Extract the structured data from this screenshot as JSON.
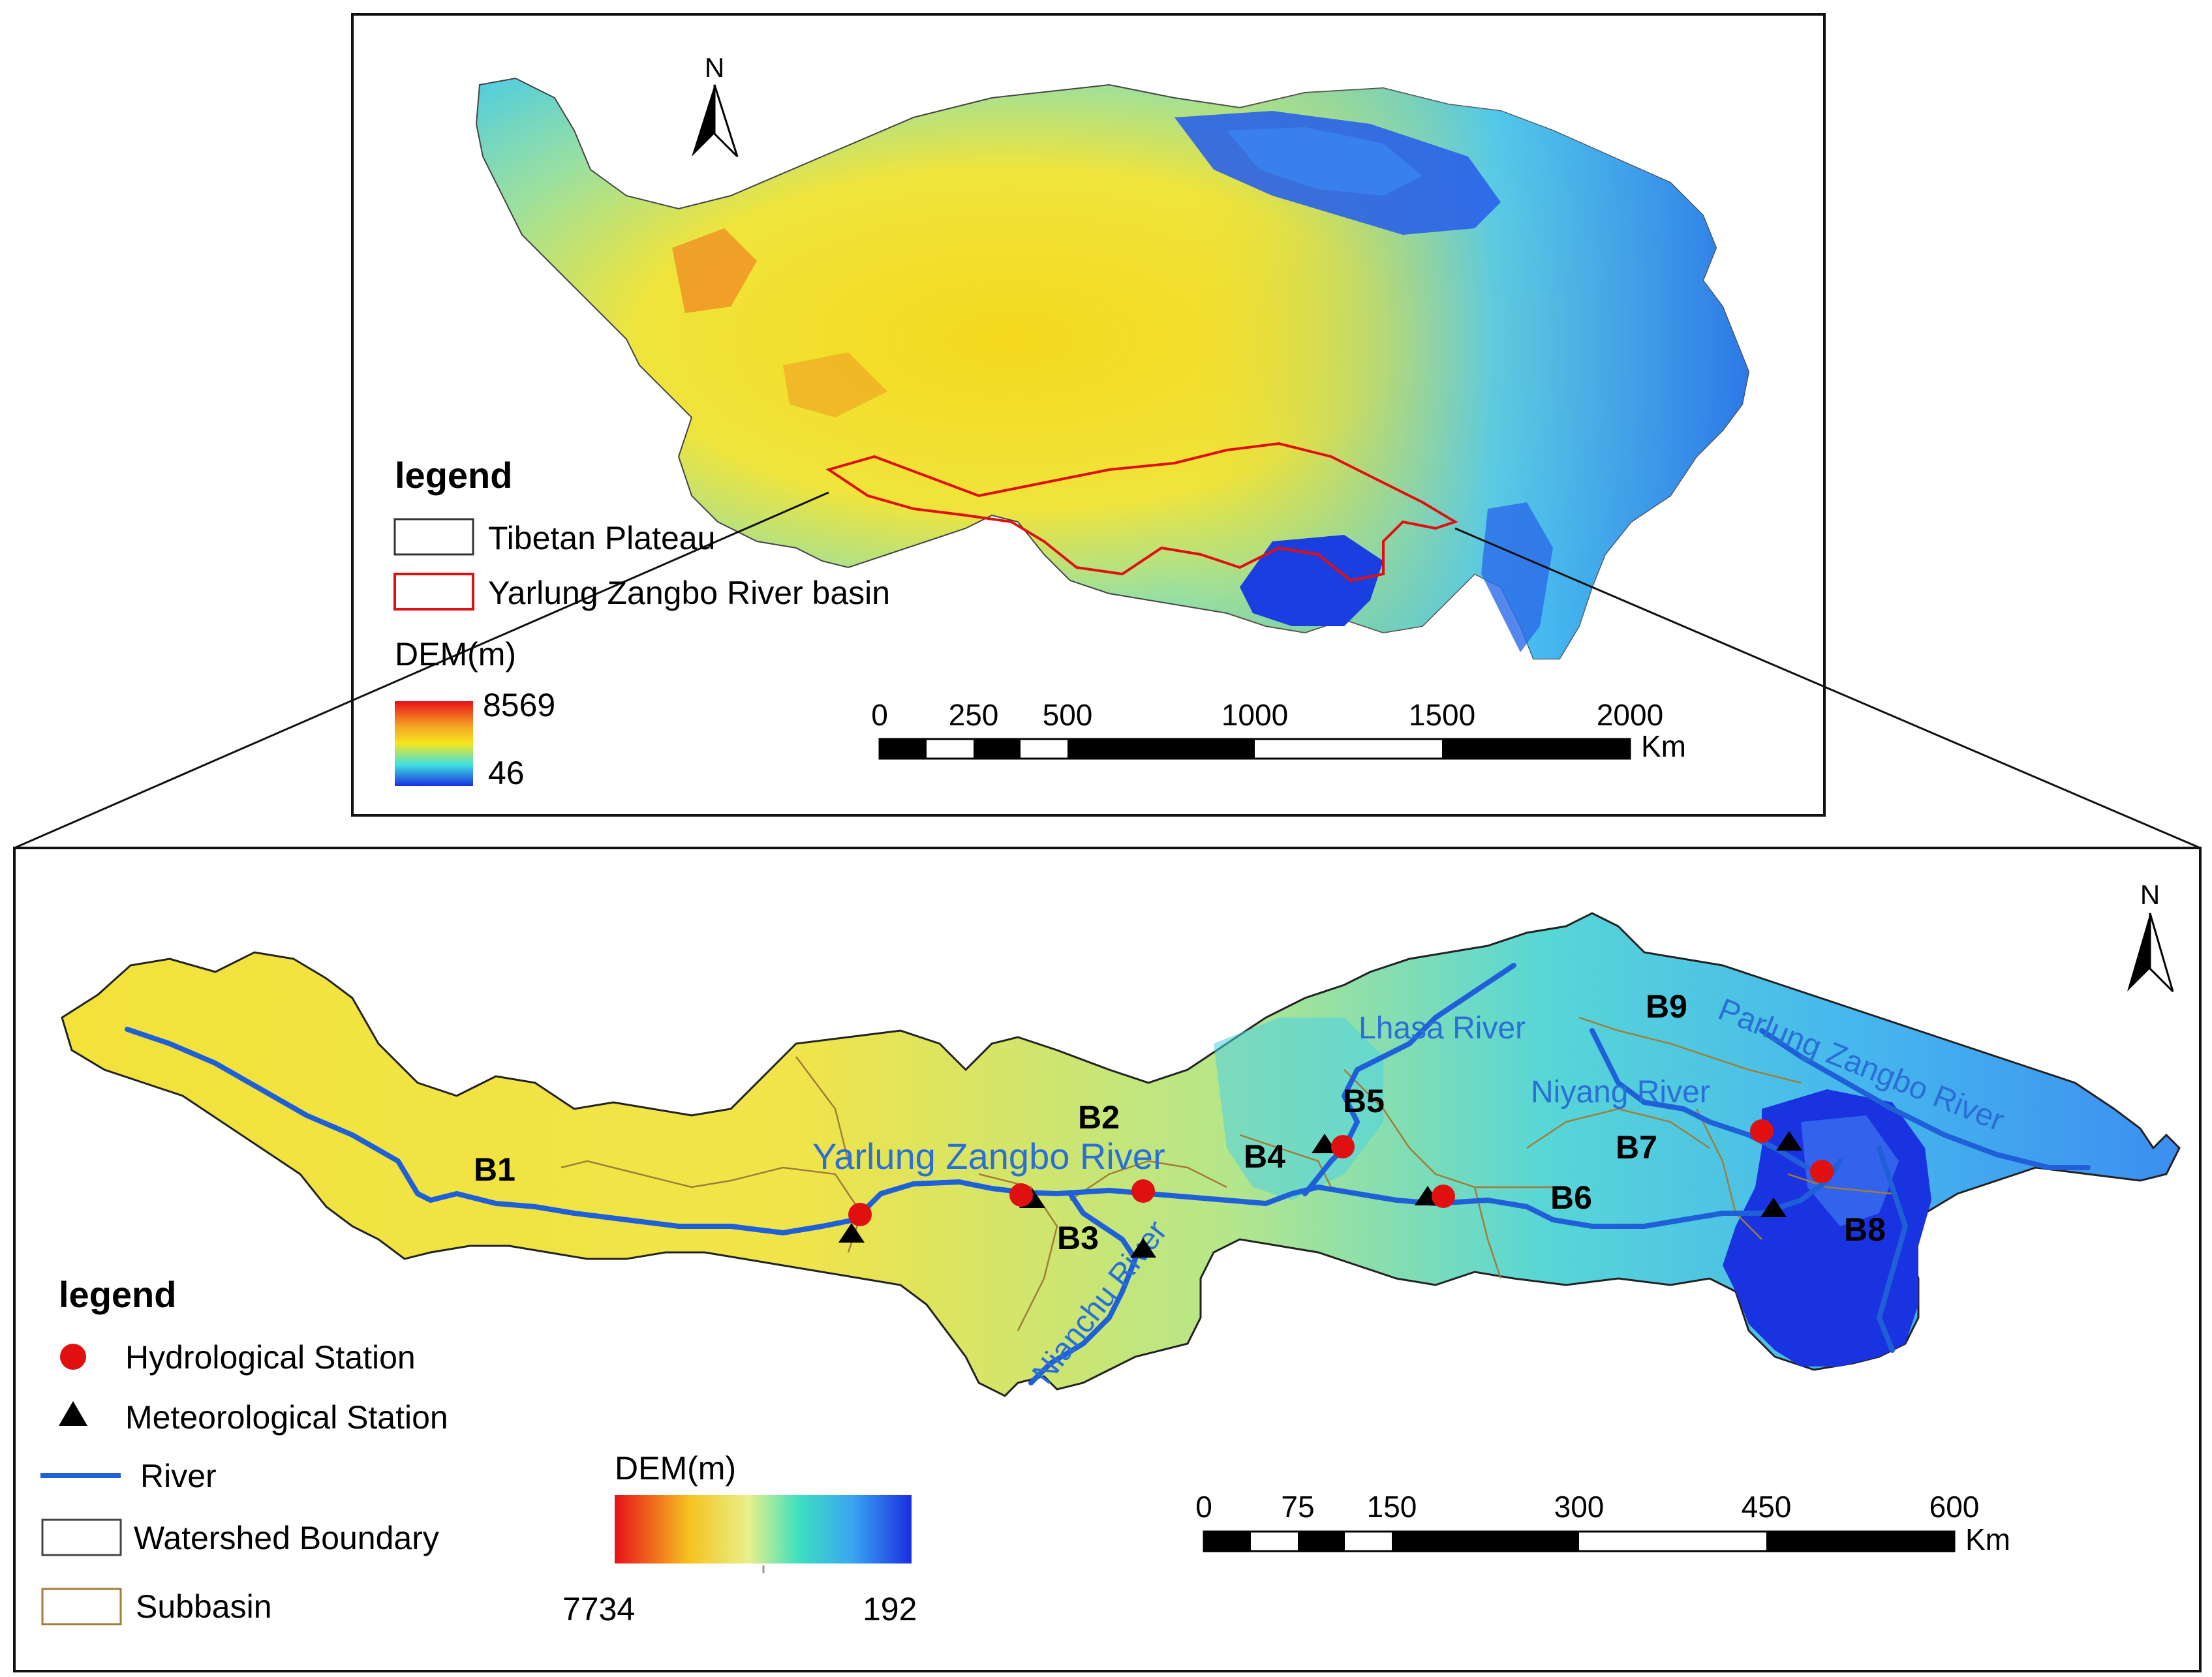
{
  "top_panel": {
    "north_label": "N",
    "legend": {
      "title": "legend",
      "items": [
        {
          "label": "Tibetan Plateau",
          "swatch": "#333333"
        },
        {
          "label": "Yarlung Zangbo River basin",
          "swatch": "#e01010"
        }
      ],
      "dem_title": "DEM(m)",
      "dem_max": "8569",
      "dem_min": "46"
    },
    "scale": {
      "ticks": [
        "0",
        "250",
        "500",
        "1000",
        "1500",
        "2000"
      ],
      "unit": "Km"
    }
  },
  "bottom_panel": {
    "north_label": "N",
    "basins": [
      "B1",
      "B2",
      "B3",
      "B4",
      "B5",
      "B6",
      "B7",
      "B8",
      "B9"
    ],
    "rivers": {
      "main": "Yarlung Zangbo River",
      "lhasa": "Lhasa River",
      "niyang": "Niyang River",
      "parlung": "Parlung Zangbo River",
      "nianchu": "Nianchu River"
    },
    "legend": {
      "title": "legend",
      "items": [
        {
          "label": "Hydrological Station",
          "icon": "red-circle-icon"
        },
        {
          "label": "Meteorological Station",
          "icon": "black-triangle-icon"
        },
        {
          "label": "River",
          "icon": "blue-line-icon"
        },
        {
          "label": "Watershed Boundary",
          "icon": "gray-box-icon"
        },
        {
          "label": "Subbasin",
          "icon": "brown-box-icon"
        }
      ],
      "dem_title": "DEM(m)",
      "dem_left": "7734",
      "dem_right": "192"
    },
    "scale": {
      "ticks": [
        "0",
        "75",
        "150",
        "300",
        "450",
        "600"
      ],
      "unit": "Km"
    }
  },
  "colors": {
    "dem_high": "#e8101a",
    "dem_mid": "#f5e61e",
    "dem_cyan": "#3ee0e0",
    "dem_low": "#1a2fe0",
    "basin_boundary": "#e01010",
    "river": "#1f5fd8",
    "hydro_station": "#e01010",
    "meteo_station": "#000000",
    "subbasin": "#a07d3a"
  }
}
